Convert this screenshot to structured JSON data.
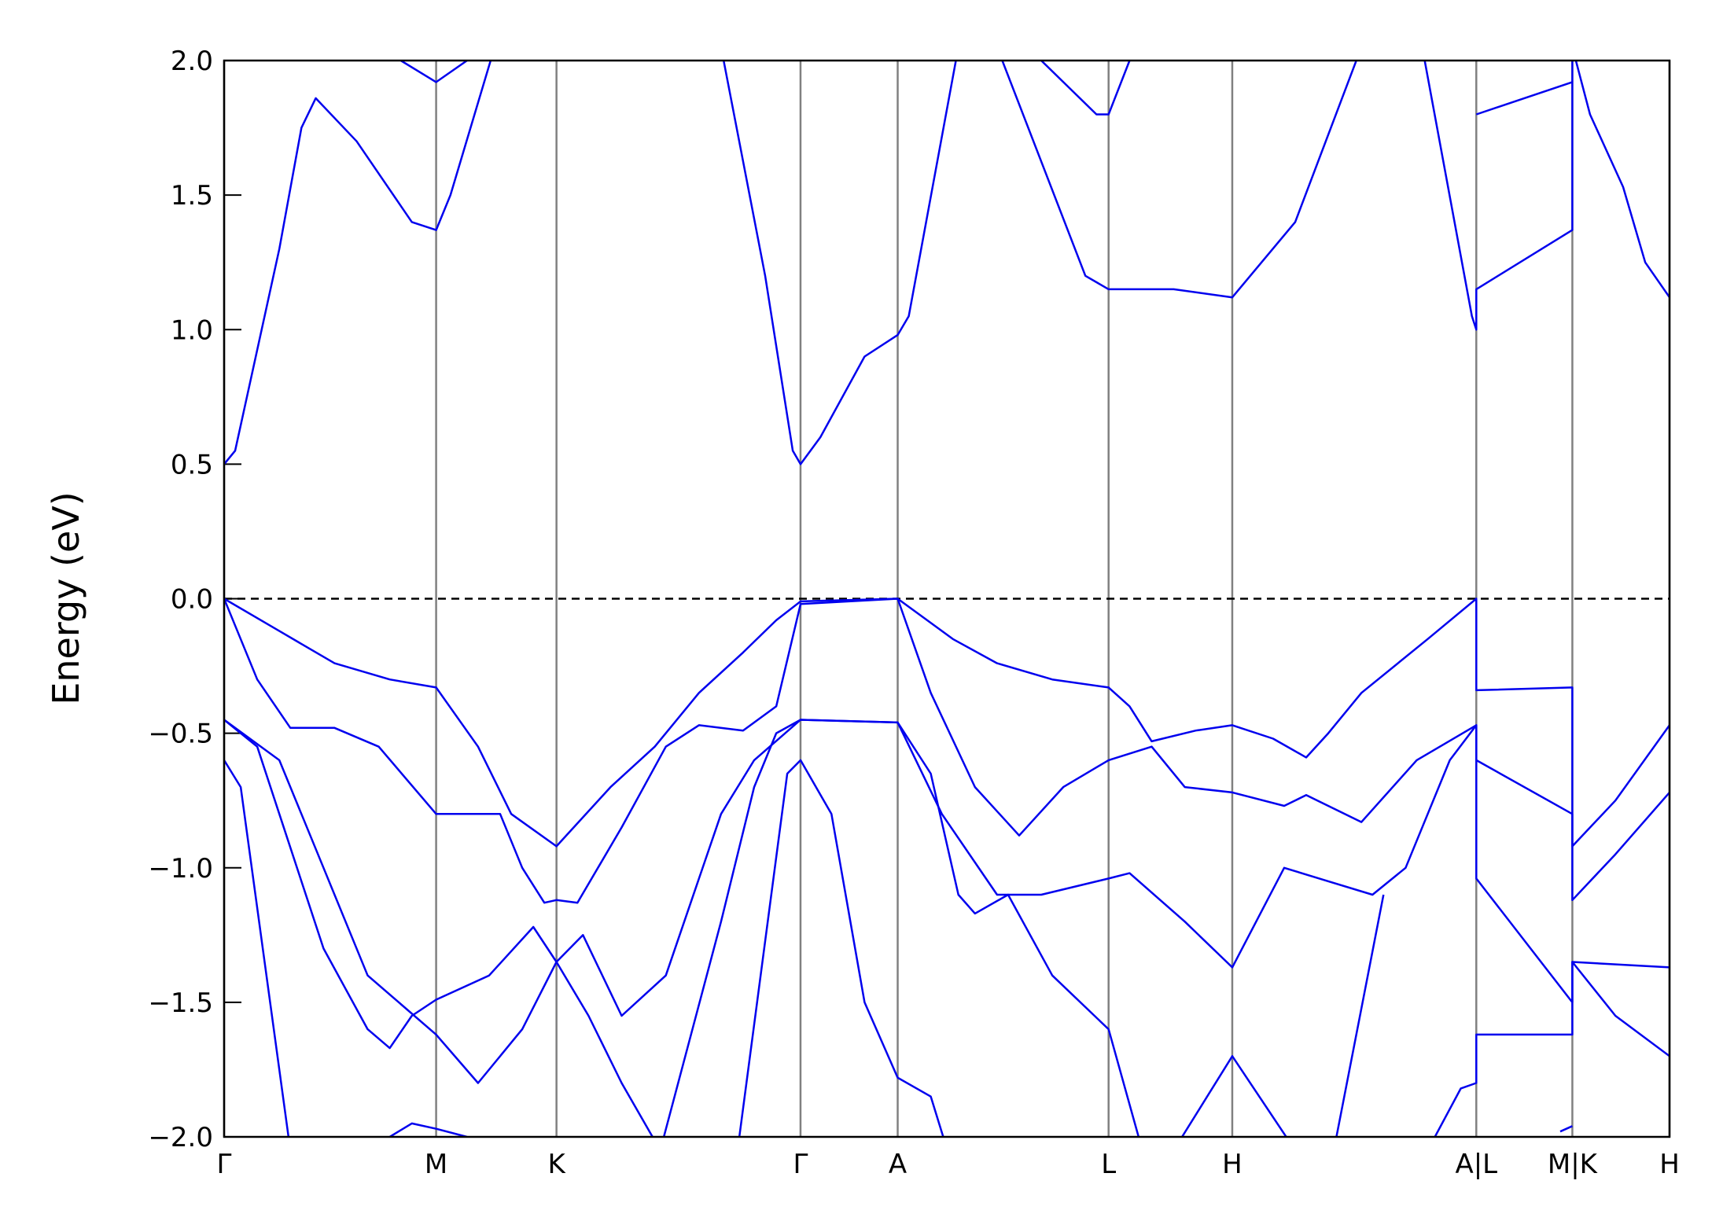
{
  "chart_data": {
    "type": "line",
    "ylabel": "Energy (eV)",
    "xlim": [
      0,
      13.09
    ],
    "ylim": [
      -2.0,
      2.0
    ],
    "yticks": [
      {
        "value": -2.0,
        "label": "−2.0"
      },
      {
        "value": -1.5,
        "label": "−1.5"
      },
      {
        "value": -1.0,
        "label": "−1.0"
      },
      {
        "value": -0.5,
        "label": "−0.5"
      },
      {
        "value": 0.0,
        "label": "0.0"
      },
      {
        "value": 0.5,
        "label": "0.5"
      },
      {
        "value": 1.0,
        "label": "1.0"
      },
      {
        "value": 1.5,
        "label": "1.5"
      },
      {
        "value": 2.0,
        "label": "2.0"
      }
    ],
    "xticks": [
      {
        "value": 0,
        "label": "Γ"
      },
      {
        "value": 1.92,
        "label": "M"
      },
      {
        "value": 3.01,
        "label": "K"
      },
      {
        "value": 5.22,
        "label": "Γ"
      },
      {
        "value": 6.1,
        "label": "A"
      },
      {
        "value": 8.01,
        "label": "L"
      },
      {
        "value": 9.13,
        "label": "H"
      },
      {
        "value": 11.34,
        "label": "A|L"
      },
      {
        "value": 12.21,
        "label": "M|K"
      },
      {
        "value": 13.09,
        "label": "H"
      }
    ],
    "xgrid": true,
    "hline": 0,
    "series": [
      {
        "color": "#0000ee",
        "x": [
          0,
          0.5,
          1.0,
          1.5,
          1.92,
          2.3,
          2.6,
          3.01,
          3.5,
          3.9,
          4.3,
          4.7,
          5.0,
          5.22,
          6.1,
          6.3,
          6.6,
          7.0,
          7.5,
          8.01,
          8.2,
          8.4,
          8.8,
          9.13,
          9.5,
          9.8,
          10.0,
          10.3,
          10.9,
          11.34,
          11.34,
          12.21,
          12.21,
          12.6,
          13.09
        ],
        "values": [
          0,
          -0.12,
          -0.24,
          -0.3,
          -0.33,
          -0.55,
          -0.8,
          -0.92,
          -0.7,
          -0.55,
          -0.35,
          -0.2,
          -0.08,
          -0.01,
          0,
          -0.06,
          -0.15,
          -0.24,
          -0.3,
          -0.33,
          -0.4,
          -0.53,
          -0.49,
          -0.47,
          -0.52,
          -0.59,
          -0.5,
          -0.35,
          -0.15,
          0,
          -0.34,
          -0.33,
          -0.92,
          -0.75,
          -0.47
        ]
      },
      {
        "color": "#0000ee",
        "x": [
          0,
          0.3,
          0.6,
          1.0,
          1.4,
          1.92,
          2.5,
          2.7,
          2.9,
          3.01,
          3.2,
          3.6,
          4.0,
          4.3,
          4.7,
          5.0,
          5.22,
          6.1,
          6.4,
          6.8,
          7.2,
          7.6,
          8.01,
          8.4,
          8.7,
          9.13,
          9.6,
          9.8,
          10.3,
          10.8,
          11.34,
          11.34,
          12.21,
          12.21,
          12.6,
          13.09
        ],
        "values": [
          0,
          -0.3,
          -0.48,
          -0.48,
          -0.55,
          -0.8,
          -0.8,
          -1.0,
          -1.13,
          -1.12,
          -1.13,
          -0.85,
          -0.55,
          -0.47,
          -0.49,
          -0.4,
          -0.02,
          0,
          -0.35,
          -0.7,
          -0.88,
          -0.7,
          -0.6,
          -0.55,
          -0.7,
          -0.72,
          -0.77,
          -0.73,
          -0.83,
          -0.6,
          -0.47,
          -0.6,
          -0.8,
          -1.12,
          -0.95,
          -0.72
        ]
      },
      {
        "color": "#0000ee",
        "x": [
          0,
          0.3,
          0.5,
          0.9,
          1.3,
          1.5,
          1.7,
          1.92,
          2.4,
          2.8,
          3.01,
          3.3,
          3.6,
          3.95
        ],
        "values": [
          -0.45,
          -0.55,
          -0.8,
          -1.3,
          -1.6,
          -1.67,
          -1.55,
          -1.49,
          -1.4,
          -1.22,
          -1.35,
          -1.55,
          -1.8,
          -2.05
        ]
      },
      {
        "color": "#0000ee",
        "x": [
          0,
          0.5,
          0.9,
          1.3,
          1.92,
          2.3,
          2.7,
          3.01,
          3.25,
          3.6,
          4.0,
          4.5,
          4.8,
          5.22,
          6.1,
          6.4,
          6.65,
          6.8,
          7.1,
          7.5,
          8.01,
          8.35
        ],
        "values": [
          -0.45,
          -0.6,
          -1.0,
          -1.4,
          -1.62,
          -1.8,
          -1.6,
          -1.35,
          -1.25,
          -1.55,
          -1.4,
          -0.8,
          -0.6,
          -0.45,
          -0.46,
          -0.65,
          -1.1,
          -1.17,
          -1.1,
          -1.4,
          -1.6,
          -2.1
        ]
      },
      {
        "color": "#0000ee",
        "x": [
          3.95,
          4.5,
          4.8,
          5.0,
          5.22,
          6.1,
          6.5,
          7.0,
          7.4,
          8.01,
          8.2,
          8.7,
          9.13,
          9.6,
          10.0,
          10.4,
          10.7,
          11.1,
          11.34,
          11.34,
          12.21,
          12.21,
          13.09
        ],
        "values": [
          -2.05,
          -1.2,
          -0.7,
          -0.5,
          -0.45,
          -0.46,
          -0.8,
          -1.1,
          -1.1,
          -1.04,
          -1.02,
          -1.2,
          -1.37,
          -1.0,
          -1.05,
          -1.1,
          -1.0,
          -0.6,
          -0.47,
          -1.04,
          -1.5,
          -1.35,
          -1.37
        ]
      },
      {
        "color": "#0000ee",
        "x": [
          0,
          0.15,
          0.6,
          0.6,
          4.65,
          5.1,
          5.22,
          5.5,
          5.8,
          6.1,
          6.4,
          6.55,
          6.55,
          8.6,
          9.13,
          9.7,
          9.7,
          10.05,
          10.5,
          10.5,
          10.9,
          11.2,
          11.34,
          11.34,
          12.21,
          12.21,
          12.6,
          13.09
        ],
        "values": [
          -0.6,
          -0.7,
          -2.05,
          null,
          -2.05,
          -0.65,
          -0.6,
          -0.8,
          -1.5,
          -1.78,
          -1.85,
          -2.05,
          null,
          -2.05,
          -1.7,
          -2.05,
          null,
          -2.05,
          -1.1,
          null,
          -2.05,
          -1.82,
          -1.8,
          -1.62,
          -1.62,
          -1.35,
          -1.55,
          -1.7
        ]
      },
      {
        "color": "#0000ee",
        "x": [
          0,
          0.1,
          0.5,
          0.7,
          0.83,
          1.2,
          1.7,
          1.92,
          2.05,
          2.45,
          2.45,
          4.5,
          4.9,
          5.15,
          5.22,
          5.4,
          5.8,
          6.1,
          6.2,
          6.65,
          6.65,
          7.0,
          7.8,
          8.01,
          8.6,
          9.13,
          9.7,
          10.3,
          10.3,
          10.85,
          11.3,
          11.34,
          11.34,
          12.21,
          12.21,
          12.37,
          12.67,
          12.87,
          13.09
        ],
        "values": [
          0.5,
          0.55,
          1.3,
          1.75,
          1.86,
          1.7,
          1.4,
          1.37,
          1.5,
          2.05,
          null,
          2.05,
          1.2,
          0.55,
          0.5,
          0.6,
          0.9,
          0.98,
          1.05,
          2.05,
          null,
          2.05,
          1.2,
          1.15,
          1.15,
          1.12,
          1.4,
          2.05,
          null,
          2.05,
          1.05,
          1.0,
          1.15,
          1.37,
          2.05,
          1.8,
          1.53,
          1.25,
          1.12
        ]
      },
      {
        "color": "#0000ee",
        "x": [
          1.6,
          1.92,
          2.2,
          2.2,
          7.4,
          7.9,
          8.01,
          8.2,
          8.2,
          11.34,
          12.21
        ],
        "values": [
          2.0,
          1.92,
          2.0,
          null,
          2.0,
          1.8,
          1.8,
          2.0,
          null,
          1.8,
          1.92
        ]
      },
      {
        "color": "#0000ee",
        "x": [
          1.5,
          1.7,
          1.92,
          2.2,
          2.2,
          12.1,
          12.21
        ],
        "values": [
          -2.0,
          -1.95,
          -1.97,
          -2.0,
          null,
          -1.98,
          -1.96
        ]
      }
    ]
  }
}
